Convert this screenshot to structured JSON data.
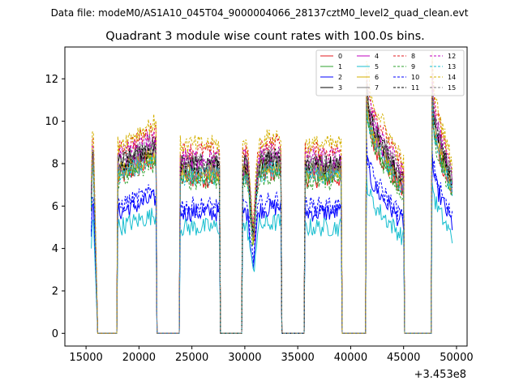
{
  "chart_data": {
    "type": "line",
    "suptitle": "Data file: modeM0/AS1A10_045T04_9000004066_28137cztM0_level2_quad_clean.evt",
    "title": "Quadrant 3 module wise count rates with 100.0s bins.",
    "xlabel": "",
    "ylabel": "",
    "x_offset_label": "+3.453e8",
    "xlim": [
      13000,
      51000
    ],
    "ylim": [
      -0.6,
      13.5
    ],
    "x_ticks": [
      15000,
      20000,
      25000,
      30000,
      35000,
      40000,
      45000,
      50000
    ],
    "x_tick_labels": [
      "15000",
      "20000",
      "25000",
      "30000",
      "35000",
      "40000",
      "45000",
      "50000"
    ],
    "y_ticks": [
      0,
      2,
      4,
      6,
      8,
      10,
      12
    ],
    "y_tick_labels": [
      "0",
      "2",
      "4",
      "6",
      "8",
      "10",
      "12"
    ],
    "grid": false,
    "legend_position": "top-right",
    "legend_columns": 4,
    "orbit_segments": [
      {
        "start": 15500,
        "end": 15800,
        "pattern": "spike"
      },
      {
        "start": 18000,
        "end": 21600,
        "pattern": "rising"
      },
      {
        "start": 23900,
        "end": 27600,
        "pattern": "flat"
      },
      {
        "start": 29800,
        "end": 33400,
        "pattern": "dip"
      },
      {
        "start": 35700,
        "end": 39100,
        "pattern": "flat"
      },
      {
        "start": 41500,
        "end": 45000,
        "pattern": "decay"
      },
      {
        "start": 47700,
        "end": 49600,
        "pattern": "decay"
      }
    ],
    "series": [
      {
        "name": "0",
        "color": "#e31a1c",
        "dash": "solid",
        "level": 7.3
      },
      {
        "name": "1",
        "color": "#2ca02c",
        "dash": "solid",
        "level": 7.5
      },
      {
        "name": "2",
        "color": "#0000ff",
        "dash": "solid",
        "level": 5.7
      },
      {
        "name": "3",
        "color": "#000000",
        "dash": "solid",
        "level": 8.0
      },
      {
        "name": "4",
        "color": "#bf00bf",
        "dash": "solid",
        "level": 7.8
      },
      {
        "name": "5",
        "color": "#17becf",
        "dash": "solid",
        "level": 5.0
      },
      {
        "name": "6",
        "color": "#d4b000",
        "dash": "solid",
        "level": 7.6
      },
      {
        "name": "7",
        "color": "#7f7f7f",
        "dash": "solid",
        "level": 7.7
      },
      {
        "name": "8",
        "color": "#e31a1c",
        "dash": "dashed",
        "level": 8.6
      },
      {
        "name": "9",
        "color": "#2ca02c",
        "dash": "dashed",
        "level": 7.2
      },
      {
        "name": "10",
        "color": "#0000ff",
        "dash": "dashed",
        "level": 6.0
      },
      {
        "name": "11",
        "color": "#000000",
        "dash": "dashed",
        "level": 7.9
      },
      {
        "name": "12",
        "color": "#bf00bf",
        "dash": "dashed",
        "level": 8.3
      },
      {
        "name": "13",
        "color": "#17becf",
        "dash": "dashed",
        "level": 7.4
      },
      {
        "name": "14",
        "color": "#d4b000",
        "dash": "dashed",
        "level": 8.9
      },
      {
        "name": "15",
        "color": "#7f7f7f",
        "dash": "dashed",
        "level": 8.1
      }
    ]
  }
}
